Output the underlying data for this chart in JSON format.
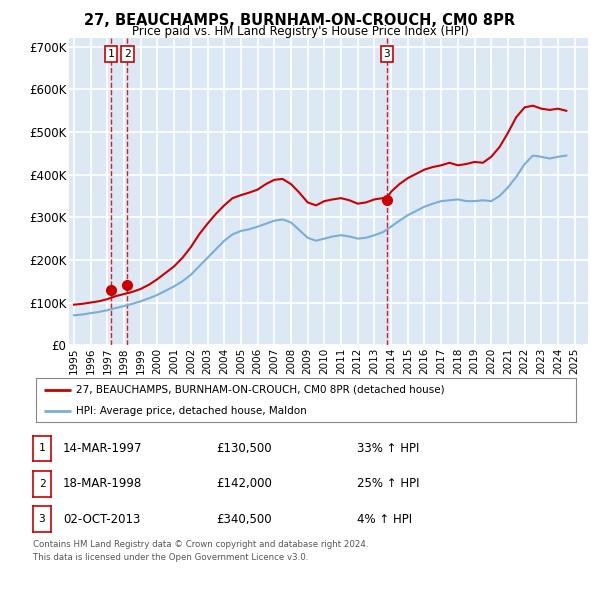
{
  "title": "27, BEAUCHAMPS, BURNHAM-ON-CROUCH, CM0 8PR",
  "subtitle": "Price paid vs. HM Land Registry's House Price Index (HPI)",
  "ylim": [
    0,
    720000
  ],
  "yticks": [
    0,
    100000,
    200000,
    300000,
    400000,
    500000,
    600000,
    700000
  ],
  "ytick_labels": [
    "£0",
    "£100K",
    "£200K",
    "£300K",
    "£400K",
    "£500K",
    "£600K",
    "£700K"
  ],
  "xlim_start": 1994.7,
  "xlim_end": 2025.8,
  "plot_bg_color": "#dce9f5",
  "grid_color": "#ffffff",
  "sale_color": "#cc0000",
  "hpi_color": "#7aaed6",
  "vline_color": "#cc0000",
  "purchases": [
    {
      "num": 1,
      "date_str": "14-MAR-1997",
      "year": 1997.2,
      "price": 130500,
      "pct": "33%",
      "dir": "↑"
    },
    {
      "num": 2,
      "date_str": "18-MAR-1998",
      "year": 1998.2,
      "price": 142000,
      "pct": "25%",
      "dir": "↑"
    },
    {
      "num": 3,
      "date_str": "02-OCT-2013",
      "year": 2013.75,
      "price": 340500,
      "pct": "4%",
      "dir": "↑"
    }
  ],
  "legend_line1": "27, BEAUCHAMPS, BURNHAM-ON-CROUCH, CM0 8PR (detached house)",
  "legend_line2": "HPI: Average price, detached house, Maldon",
  "footer1": "Contains HM Land Registry data © Crown copyright and database right 2024.",
  "footer2": "This data is licensed under the Open Government Licence v3.0.",
  "hpi_data": {
    "years": [
      1995.0,
      1995.5,
      1996.0,
      1996.5,
      1997.0,
      1997.5,
      1998.0,
      1998.5,
      1999.0,
      1999.5,
      2000.0,
      2000.5,
      2001.0,
      2001.5,
      2002.0,
      2002.5,
      2003.0,
      2003.5,
      2004.0,
      2004.5,
      2005.0,
      2005.5,
      2006.0,
      2006.5,
      2007.0,
      2007.5,
      2008.0,
      2008.5,
      2009.0,
      2009.5,
      2010.0,
      2010.5,
      2011.0,
      2011.5,
      2012.0,
      2012.5,
      2013.0,
      2013.5,
      2014.0,
      2014.5,
      2015.0,
      2015.5,
      2016.0,
      2016.5,
      2017.0,
      2017.5,
      2018.0,
      2018.5,
      2019.0,
      2019.5,
      2020.0,
      2020.5,
      2021.0,
      2021.5,
      2022.0,
      2022.5,
      2023.0,
      2023.5,
      2024.0,
      2024.5
    ],
    "values": [
      70000,
      72000,
      75000,
      78000,
      82000,
      87000,
      92000,
      97000,
      103000,
      110000,
      118000,
      128000,
      138000,
      150000,
      165000,
      185000,
      205000,
      225000,
      245000,
      260000,
      268000,
      272000,
      278000,
      285000,
      292000,
      295000,
      288000,
      270000,
      252000,
      245000,
      250000,
      255000,
      258000,
      255000,
      250000,
      252000,
      258000,
      265000,
      278000,
      292000,
      305000,
      315000,
      325000,
      332000,
      338000,
      340000,
      342000,
      338000,
      338000,
      340000,
      338000,
      350000,
      370000,
      395000,
      425000,
      445000,
      442000,
      438000,
      442000,
      445000
    ]
  },
  "sale_data": {
    "years": [
      1995.0,
      1995.5,
      1996.0,
      1996.5,
      1997.0,
      1997.5,
      1998.0,
      1998.5,
      1999.0,
      1999.5,
      2000.0,
      2000.5,
      2001.0,
      2001.5,
      2002.0,
      2002.5,
      2003.0,
      2003.5,
      2004.0,
      2004.5,
      2005.0,
      2005.5,
      2006.0,
      2006.5,
      2007.0,
      2007.5,
      2008.0,
      2008.5,
      2009.0,
      2009.5,
      2010.0,
      2010.5,
      2011.0,
      2011.5,
      2012.0,
      2012.5,
      2013.0,
      2013.5,
      2013.75,
      2014.0,
      2014.5,
      2015.0,
      2015.5,
      2016.0,
      2016.5,
      2017.0,
      2017.5,
      2018.0,
      2018.5,
      2019.0,
      2019.5,
      2020.0,
      2020.5,
      2021.0,
      2021.5,
      2022.0,
      2022.5,
      2023.0,
      2023.5,
      2024.0,
      2024.5
    ],
    "values": [
      95000,
      97000,
      100000,
      103000,
      108000,
      115000,
      120000,
      125000,
      132000,
      142000,
      155000,
      170000,
      185000,
      205000,
      230000,
      260000,
      285000,
      308000,
      328000,
      345000,
      352000,
      358000,
      365000,
      378000,
      388000,
      390000,
      378000,
      358000,
      335000,
      328000,
      338000,
      342000,
      345000,
      340000,
      332000,
      335000,
      342000,
      345000,
      345000,
      360000,
      378000,
      392000,
      402000,
      412000,
      418000,
      422000,
      428000,
      422000,
      425000,
      430000,
      428000,
      442000,
      465000,
      498000,
      535000,
      558000,
      562000,
      555000,
      552000,
      555000,
      550000
    ]
  }
}
